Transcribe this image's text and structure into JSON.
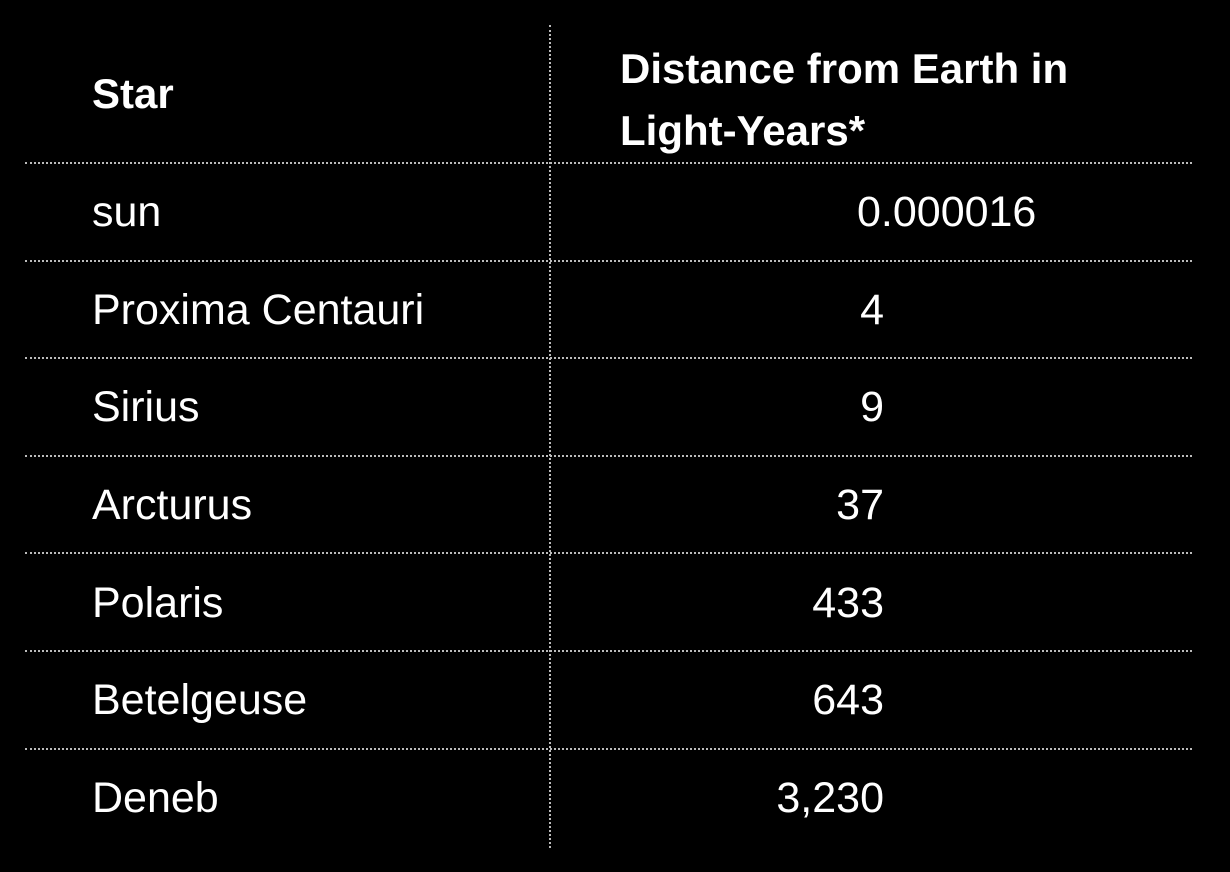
{
  "table": {
    "columns": [
      "Star",
      "Distance from Earth in Light-Years*"
    ],
    "rows": [
      [
        "sun",
        "0.000016"
      ],
      [
        "Proxima Centauri",
        "4"
      ],
      [
        "Sirius",
        "9"
      ],
      [
        "Arcturus",
        "37"
      ],
      [
        "Polaris",
        "433"
      ],
      [
        "Betelgeuse",
        "643"
      ],
      [
        "Deneb",
        "3,230"
      ]
    ]
  }
}
